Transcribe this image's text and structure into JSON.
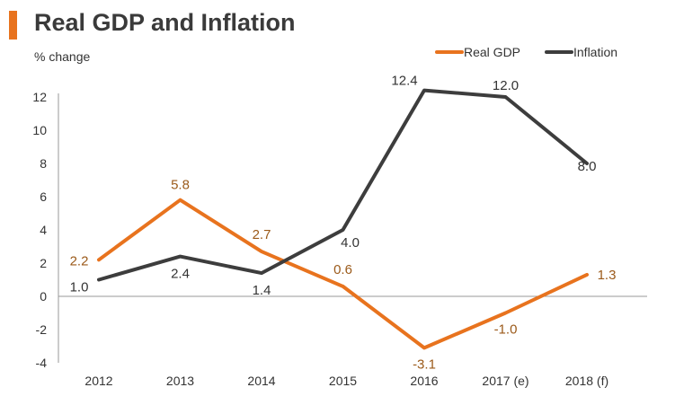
{
  "chart_data": {
    "type": "line",
    "title": "Real GDP and Inflation",
    "ylabel": "% change",
    "xlabel": "",
    "categories": [
      "2012",
      "2013",
      "2014",
      "2015",
      "2016",
      "2017 (e)",
      "2018 (f)"
    ],
    "ylim": [
      -4,
      12
    ],
    "yticks": [
      -4,
      -2,
      0,
      2,
      4,
      6,
      8,
      10,
      12
    ],
    "legend_position": "top-right",
    "series": [
      {
        "name": "Real GDP",
        "color": "#e8731e",
        "label_color": "#9b5a1a",
        "values": [
          2.2,
          5.8,
          2.7,
          0.6,
          -3.1,
          -1.0,
          1.3
        ],
        "labels": [
          "2.2",
          "5.8",
          "2.7",
          "0.6",
          "-3.1",
          "-1.0",
          "1.3"
        ]
      },
      {
        "name": "Inflation",
        "color": "#3d3d3d",
        "label_color": "#333333",
        "values": [
          1.0,
          2.4,
          1.4,
          4.0,
          12.4,
          12.0,
          8.0
        ],
        "labels": [
          "1.0",
          "2.4",
          "1.4",
          "4.0",
          "12.4",
          "12.0",
          "8.0"
        ]
      }
    ]
  }
}
